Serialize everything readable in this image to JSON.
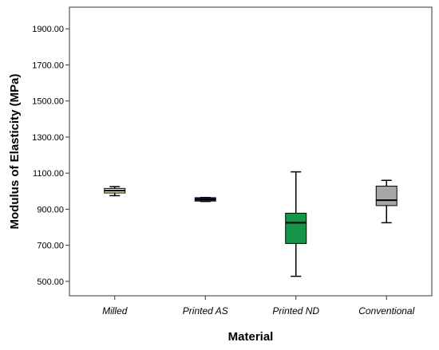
{
  "chart_data": {
    "type": "boxplot",
    "xlabel": "Material",
    "ylabel": "Modulus of Elasticity (MPa)",
    "ylim": [
      420,
      2020
    ],
    "y_ticks": [
      "500.00",
      "700.00",
      "900.00",
      "1100.00",
      "1300.00",
      "1500.00",
      "1700.00",
      "1900.00"
    ],
    "y_tick_values": [
      500,
      700,
      900,
      1100,
      1300,
      1500,
      1700,
      1900
    ],
    "categories": [
      "Milled",
      "Printed AS",
      "Printed ND",
      "Conventional"
    ],
    "boxes": [
      {
        "category": "Milled",
        "min": 975,
        "q1": 990,
        "median": 1003,
        "q3": 1015,
        "max": 1025,
        "color": "#f5f0b8"
      },
      {
        "category": "Printed AS",
        "min": 943,
        "q1": 945,
        "median": 955,
        "q3": 964,
        "max": 965,
        "color": "#1a2a6c"
      },
      {
        "category": "Printed ND",
        "min": 528,
        "q1": 710,
        "median": 825,
        "q3": 878,
        "max": 1107,
        "color": "#15944a"
      },
      {
        "category": "Conventional",
        "min": 825,
        "q1": 920,
        "median": 950,
        "q3": 1028,
        "max": 1060,
        "color": "#a6a6a6"
      }
    ],
    "grid": false,
    "legend": "none"
  }
}
